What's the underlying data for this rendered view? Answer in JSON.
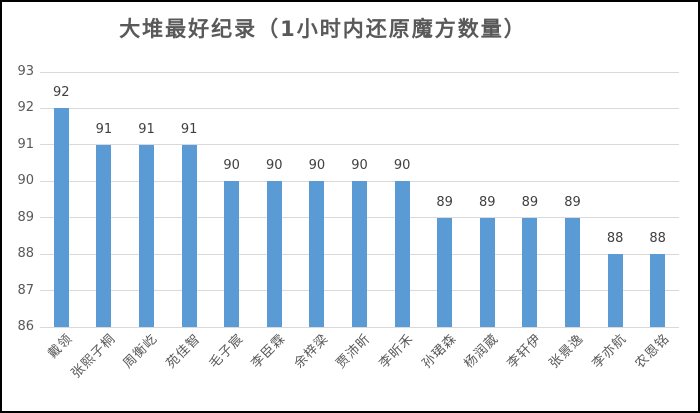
{
  "chart_data": {
    "type": "bar",
    "title": "大堆最好纪录（1小时内还原魔方数量）",
    "categories": [
      "戴领",
      "张熙子桐",
      "周衡屹",
      "苑佳智",
      "毛子宸",
      "李臣霖",
      "余梓梁",
      "贾沛昕",
      "李昕禾",
      "孙珺森",
      "杨润葳",
      "李轩伊",
      "张景逸",
      "李亦航",
      "农恩铭"
    ],
    "values": [
      92,
      91,
      91,
      91,
      90,
      90,
      90,
      90,
      90,
      89,
      89,
      89,
      89,
      88,
      88
    ],
    "xlabel": "",
    "ylabel": "",
    "ylim": [
      86,
      93
    ],
    "ytick_step": 1,
    "yticks": [
      86,
      87,
      88,
      89,
      90,
      91,
      92,
      93
    ],
    "grid": true,
    "legend_position": "none",
    "value_label_position": "outside-end",
    "colors": {
      "bar": "#5B9BD5",
      "gridline": "#D9D9D9",
      "title": "#595959",
      "value_label": "#404040",
      "tick_label": "#595959",
      "frame_border": "#000000",
      "background": "#FFFFFF"
    }
  }
}
